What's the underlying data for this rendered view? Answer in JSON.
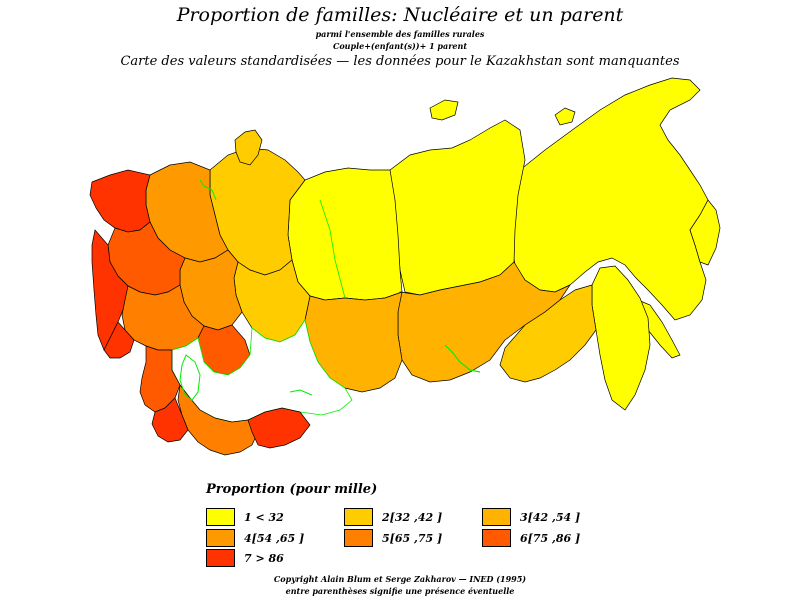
{
  "header": {
    "title": "Proportion de familles: Nucléaire et un parent",
    "subtitle_1": "parmi l'ensemble des familles rurales",
    "subtitle_2": "Couple+(enfant(s))+ 1 parent",
    "subtitle_3": "Carte des valeurs standardisées  —  les données pour le Kazakhstan sont manquantes"
  },
  "legend": {
    "title": "Proportion (pour mille)",
    "classes": [
      {
        "label": "1  <   32",
        "color": "#ffff00"
      },
      {
        "label": "2[32 ,42 ]",
        "color": "#ffcc00"
      },
      {
        "label": "3[42 ,54 ]",
        "color": "#ffb300"
      },
      {
        "label": "4[54 ,65 ]",
        "color": "#ff9900"
      },
      {
        "label": "5[65 ,75 ]",
        "color": "#ff8000"
      },
      {
        "label": "6[75 ,86 ]",
        "color": "#ff5a00"
      },
      {
        "label": "7  >   86",
        "color": "#ff3300"
      }
    ]
  },
  "map": {
    "missing_data_color": "#ffffff",
    "water_border_color": "#00ee00",
    "boundary_color": "#000000"
  },
  "footer": {
    "line_1": "Copyright Alain Blum et Serge Zakharov  —  INED (1995)",
    "line_2": "entre parenthèses signifie une présence éventuelle"
  }
}
